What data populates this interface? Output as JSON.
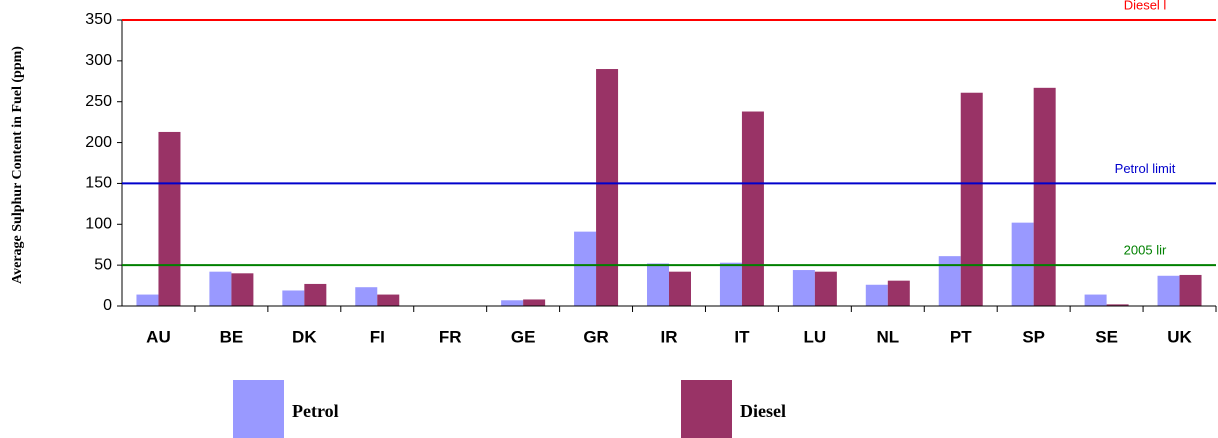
{
  "chart_data": {
    "type": "bar",
    "y_label": "Average Sulphur Content in Fuel (ppm)",
    "categories": [
      "AU",
      "BE",
      "DK",
      "FI",
      "FR",
      "GE",
      "GR",
      "IR",
      "IT",
      "LU",
      "NL",
      "PT",
      "SP",
      "SE",
      "UK"
    ],
    "series": [
      {
        "name": "Petrol",
        "color": "#9999ff",
        "values": [
          14,
          42,
          19,
          23,
          0,
          7,
          91,
          52,
          53,
          44,
          26,
          61,
          102,
          14,
          37
        ]
      },
      {
        "name": "Diesel",
        "color": "#993366",
        "values": [
          213,
          40,
          27,
          14,
          0,
          8,
          290,
          42,
          238,
          42,
          31,
          261,
          267,
          2,
          38
        ]
      }
    ],
    "reference_lines": [
      {
        "label": "Diesel l",
        "value": 350,
        "color": "#ff0000"
      },
      {
        "label": "Petrol limit",
        "value": 150,
        "color": "#0000cc"
      },
      {
        "label": "2005 lir",
        "value": 50,
        "color": "#008000"
      }
    ],
    "ylim": [
      0,
      350
    ],
    "yticks": [
      0,
      50,
      100,
      150,
      200,
      250,
      300,
      350
    ],
    "legend": "bottom"
  }
}
